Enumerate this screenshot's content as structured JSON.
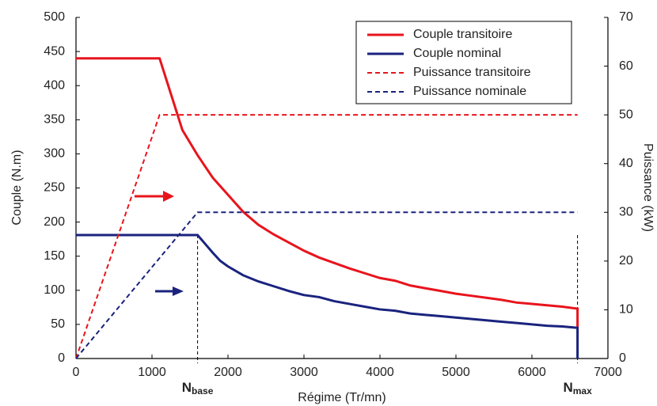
{
  "chart_data": {
    "type": "line",
    "xlabel": "Régime (Tr/mn)",
    "ylabel": "Couple (N.m)",
    "y2label": "Puissance (kW)",
    "xlim": [
      0,
      7000
    ],
    "ylim": [
      0,
      500
    ],
    "y2lim": [
      0,
      70
    ],
    "xticks": [
      0,
      1000,
      2000,
      3000,
      4000,
      5000,
      6000,
      7000
    ],
    "yticks": [
      0,
      50,
      100,
      150,
      200,
      250,
      300,
      350,
      400,
      450,
      500
    ],
    "y2ticks": [
      0,
      10,
      20,
      30,
      40,
      50,
      60,
      70
    ],
    "legend": "top-right",
    "series": [
      {
        "name": "Couple transitoire",
        "color": "#e8141c",
        "dash": false,
        "x": [
          0,
          1100,
          1200,
          1300,
          1400,
          1600,
          1800,
          2000,
          2200,
          2400,
          2600,
          2800,
          3000,
          3200,
          3400,
          3600,
          3800,
          4000,
          4200,
          4400,
          4600,
          4800,
          5000,
          5200,
          5400,
          5600,
          5800,
          6000,
          6200,
          6400,
          6600,
          6600
        ],
        "values": [
          440,
          440,
          405,
          370,
          335,
          298,
          265,
          240,
          215,
          196,
          182,
          170,
          158,
          148,
          140,
          132,
          125,
          118,
          114,
          107,
          103,
          99,
          95,
          92,
          89,
          86,
          82,
          80,
          78,
          76,
          73,
          45
        ]
      },
      {
        "name": "Couple nominal",
        "color": "#1a237e",
        "dash": false,
        "x": [
          0,
          1600,
          1700,
          1800,
          1900,
          2000,
          2200,
          2400,
          2600,
          2800,
          3000,
          3200,
          3400,
          3600,
          3800,
          4000,
          4200,
          4400,
          4600,
          4800,
          5000,
          5200,
          5400,
          5600,
          5800,
          6000,
          6200,
          6400,
          6600,
          6600
        ],
        "values": [
          181,
          181,
          168,
          155,
          143,
          135,
          122,
          113,
          106,
          99,
          93,
          90,
          84,
          80,
          76,
          72,
          70,
          66,
          64,
          62,
          60,
          58,
          56,
          54,
          52,
          50,
          48,
          47,
          45,
          0
        ]
      },
      {
        "name": "Puissance transitoire",
        "color": "#e8141c",
        "dash": true,
        "axis": "y2",
        "x": [
          0,
          1100,
          6600
        ],
        "values": [
          0,
          50,
          50
        ]
      },
      {
        "name": "Puissance nominale",
        "color": "#1a237e",
        "dash": true,
        "axis": "y2",
        "x": [
          0,
          1600,
          6600
        ],
        "values": [
          0,
          30,
          30
        ]
      }
    ],
    "annotations": [
      {
        "text": "N",
        "sub": "base",
        "x": 1600
      },
      {
        "text": "N",
        "sub": "max",
        "x": 6600
      }
    ]
  }
}
